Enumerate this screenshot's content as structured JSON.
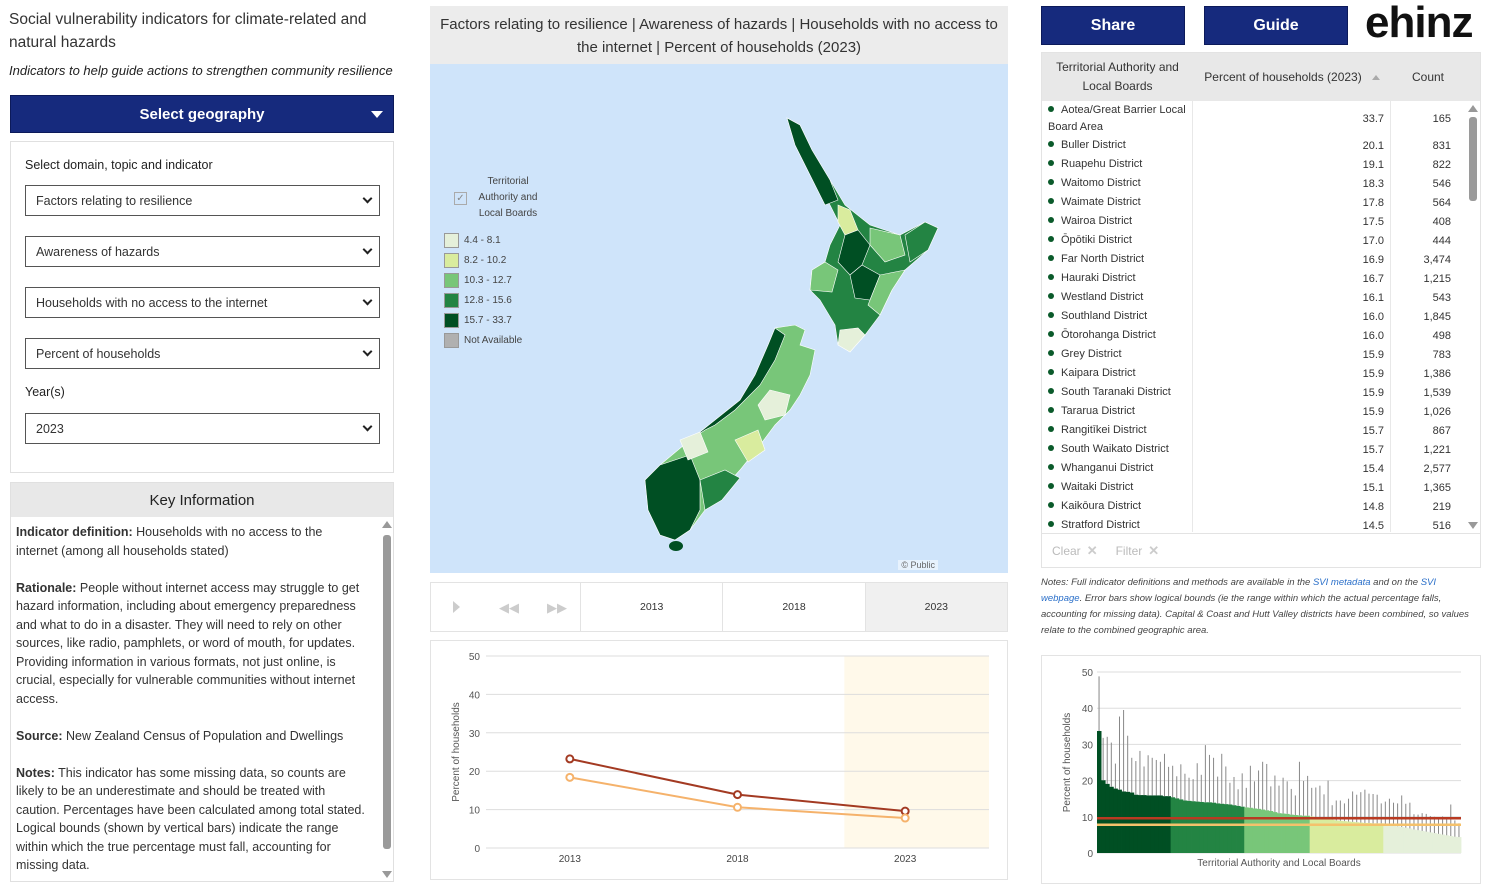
{
  "header": {
    "title": "Social vulnerability indicators for climate-related and natural hazards",
    "subtitle": "Indicators to help guide actions to strengthen community resilience",
    "select_geography": "Select geography",
    "share": "Share",
    "guide": "Guide",
    "logo": "ehinz"
  },
  "filters": {
    "domain_label": "Select domain, topic and indicator",
    "domain": "Factors relating to resilience",
    "topic": "Awareness of hazards",
    "indicator": "Households with no access to the internet",
    "measure": "Percent of households",
    "year_label": "Year(s)",
    "year": "2023"
  },
  "key_info": {
    "heading": "Key Information",
    "definition_label": "Indicator definition:",
    "definition": " Households with no access to the internet (among all households stated)",
    "rationale_label": "Rationale:",
    "rationale": " People without internet access may struggle to get hazard information, including about emergency preparedness and what to do in a disaster. They will need to rely on other sources, like radio, pamphlets, or word of mouth, for updates. Providing information in various formats, not just online, is crucial, especially for vulnerable communities without internet access.",
    "source_label": "Source:",
    "source": " New Zealand Census of Population and Dwellings",
    "notes_label": "Notes:",
    "notes": " This indicator has some missing data, so counts are likely to be an underestimate and should be treated with caution. Percentages have been calculated among total stated. Logical bounds (shown by vertical bars) indicate the range within which the true percentage must fall, accounting for missing data."
  },
  "map": {
    "title": "Factors relating to resilience | Awareness of hazards | Households with no access to the internet | Percent of households (2023)",
    "legend_title": "Territorial Authority and Local Boards",
    "legend_checked": true,
    "legend": [
      {
        "label": "4.4 - 8.1",
        "color": "#e5f0da"
      },
      {
        "label": "8.2 - 10.2",
        "color": "#d9ec9e"
      },
      {
        "label": "10.3 - 12.7",
        "color": "#78c679"
      },
      {
        "label": "12.8 - 15.6",
        "color": "#238443"
      },
      {
        "label": "15.7 - 33.7",
        "color": "#004f23"
      },
      {
        "label": "Not Available",
        "color": "#b0b0b0"
      }
    ],
    "credit": "© Public",
    "water_color": "#cfe4fa"
  },
  "timeline": {
    "years": [
      "2013",
      "2018",
      "2023"
    ],
    "active": "2023"
  },
  "table": {
    "headers": [
      "Territorial Authority and Local Boards",
      "Percent of households (2023)",
      "Count"
    ],
    "rows": [
      [
        "Aotea/Great Barrier Local Board Area",
        "33.7",
        "165"
      ],
      [
        "Buller District",
        "20.1",
        "831"
      ],
      [
        "Ruapehu District",
        "19.1",
        "822"
      ],
      [
        "Waitomo District",
        "18.3",
        "546"
      ],
      [
        "Waimate District",
        "17.8",
        "564"
      ],
      [
        "Wairoa District",
        "17.5",
        "408"
      ],
      [
        "Ōpōtiki District",
        "17.0",
        "444"
      ],
      [
        "Far North District",
        "16.9",
        "3,474"
      ],
      [
        "Hauraki District",
        "16.7",
        "1,215"
      ],
      [
        "Westland District",
        "16.1",
        "543"
      ],
      [
        "Southland District",
        "16.0",
        "1,845"
      ],
      [
        "Ōtorohanga District",
        "16.0",
        "498"
      ],
      [
        "Grey District",
        "15.9",
        "783"
      ],
      [
        "Kaipara District",
        "15.9",
        "1,386"
      ],
      [
        "South Taranaki District",
        "15.9",
        "1,539"
      ],
      [
        "Tararua District",
        "15.9",
        "1,026"
      ],
      [
        "Rangitīkei District",
        "15.7",
        "867"
      ],
      [
        "South Waikato District",
        "15.7",
        "1,221"
      ],
      [
        "Whanganui District",
        "15.4",
        "2,577"
      ],
      [
        "Waitaki District",
        "15.1",
        "1,365"
      ],
      [
        "Kaikōura District",
        "14.8",
        "219"
      ],
      [
        "Stratford District",
        "14.5",
        "516"
      ]
    ],
    "clear": "Clear",
    "filter": "Filter"
  },
  "notes": {
    "prefix": "Notes: Full indicator definitions and methods are available in the ",
    "link1": "SVI metadata",
    "mid": " and on the ",
    "link2": "SVI webpage",
    "suffix": ". Error bars show logical bounds (ie the range within which the actual percentage falls, accounting for missing data). Capital & Coast and Hutt Valley districts have been combined, so values relate to the combined geographic area."
  },
  "chart_data": [
    {
      "type": "line",
      "x": [
        "2013",
        "2018",
        "2023"
      ],
      "ylabel": "Percent of households",
      "ylim": [
        0,
        50
      ],
      "yticks": [
        "0",
        "10",
        "20",
        "30",
        "40",
        "50"
      ],
      "grid": true,
      "highlight": "2023",
      "series": [
        {
          "values": [
            23.2,
            13.9,
            9.6
          ],
          "color": "#a33a22"
        },
        {
          "values": [
            18.4,
            10.6,
            7.8
          ],
          "color": "#f5b26b"
        }
      ]
    },
    {
      "type": "bar",
      "xlabel": "Territorial Authority and Local Boards",
      "ylabel": "Percent of households",
      "ylim": [
        0,
        50
      ],
      "yticks": [
        "0",
        "10",
        "20",
        "30",
        "40",
        "50"
      ],
      "grid": true,
      "reference_lines": [
        {
          "value": 9.6,
          "color": "#b83a22"
        },
        {
          "value": 7.8,
          "color": "#f5c16b"
        }
      ],
      "values": [
        33.7,
        20.1,
        19.1,
        18.3,
        17.8,
        17.5,
        17.0,
        16.9,
        16.7,
        16.1,
        16.0,
        16.0,
        15.9,
        15.9,
        15.9,
        15.9,
        15.7,
        15.7,
        15.4,
        15.1,
        14.8,
        14.5,
        14.4,
        14.3,
        14.2,
        14.1,
        14.0,
        14.0,
        13.9,
        13.7,
        13.6,
        13.5,
        13.4,
        13.2,
        13.0,
        12.8,
        12.6,
        12.5,
        12.3,
        12.2,
        12.0,
        11.8,
        11.6,
        11.3,
        11.0,
        10.9,
        10.8,
        10.6,
        10.5,
        10.4,
        10.3,
        10.3,
        10.1,
        9.9,
        9.7,
        9.5,
        9.3,
        9.2,
        9.0,
        8.9,
        8.8,
        8.7,
        8.6,
        8.5,
        8.4,
        8.3,
        8.3,
        8.2,
        8.2,
        8.2,
        8.0,
        7.8,
        7.6,
        7.4,
        7.2,
        7.0,
        6.8,
        6.5,
        6.3,
        6.1,
        5.9,
        5.7,
        5.5,
        5.3,
        5.1,
        4.9,
        4.7,
        4.5,
        4.4
      ],
      "upper_bounds": [
        48.8,
        31.8,
        32.1,
        30.5,
        24.7,
        37.7,
        39.5,
        32.4,
        26.3,
        25.4,
        28.2,
        23.9,
        27.0,
        26.3,
        25.7,
        25.2,
        27.4,
        23.8,
        24.1,
        21.2,
        24.5,
        21.9,
        20.8,
        20.4,
        24.8,
        21.6,
        29.8,
        27.1,
        26.3,
        21.1,
        27.4,
        23.9,
        19.4,
        21.0,
        17.6,
        22.0,
        18.0,
        24.1,
        19.8,
        22.8,
        25.2,
        24.6,
        18.4,
        21.4,
        18.6,
        20.8,
        19.8,
        17.7,
        15.9,
        25.2,
        19.9,
        21.3,
        18.0,
        18.1,
        18.6,
        16.2,
        20.0,
        13.2,
        14.5,
        14.5,
        13.7,
        15.0,
        17.0,
        16.1,
        16.8,
        17.5,
        16.4,
        16.3,
        16.1,
        13.7,
        14.2,
        15.0,
        13.9,
        13.7,
        15.9,
        13.6,
        13.9,
        10.7,
        10.6,
        11.0,
        10.8,
        10.2,
        10.0,
        9.8,
        10.1,
        9.5,
        13.4,
        9.0,
        8.2
      ]
    }
  ]
}
